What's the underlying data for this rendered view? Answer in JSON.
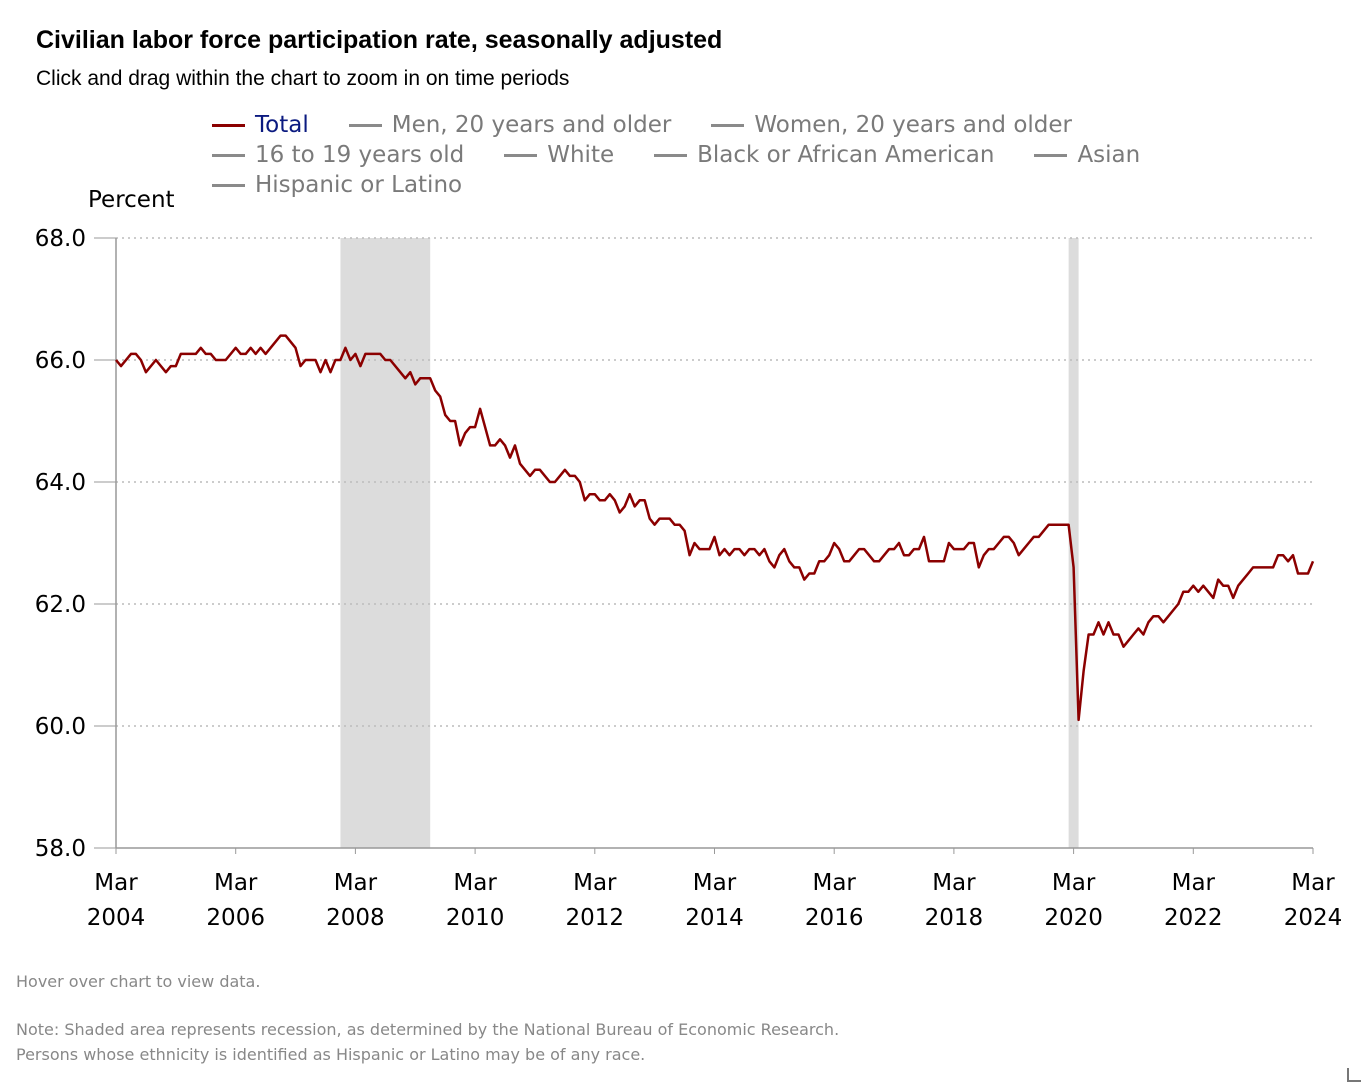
{
  "title": "Civilian labor force participation rate, seasonally adjusted",
  "subtitle": "Click and drag within the chart to zoom in on time periods",
  "legend": [
    {
      "label": "Total",
      "active": true
    },
    {
      "label": "Men, 20 years and older",
      "active": false
    },
    {
      "label": "Women, 20 years and older",
      "active": false
    },
    {
      "label": "16 to 19 years old",
      "active": false
    },
    {
      "label": "White",
      "active": false
    },
    {
      "label": "Black or African American",
      "active": false
    },
    {
      "label": "Asian",
      "active": false
    },
    {
      "label": "Hispanic or Latino",
      "active": false
    }
  ],
  "colors": {
    "total": "#8b0000",
    "recession": "#dcdcdc",
    "grid": "#bbbbbb",
    "axis": "#999999",
    "legend_inactive": "#7a7a7a",
    "legend_active_text": "#0b1a80"
  },
  "hover_note": "Hover over chart to view data.",
  "notes": [
    "Note: Shaded area represents recession, as determined by the National Bureau of Economic Research.",
    "Persons whose ethnicity is identified as Hispanic or Latino may be of any race."
  ],
  "chart_data": {
    "type": "line",
    "ylabel": "Percent",
    "xlabel": "",
    "ylim": [
      58.0,
      68.0
    ],
    "xlim": [
      "2004-03",
      "2024-03"
    ],
    "yticks": [
      "58.0",
      "60.0",
      "62.0",
      "64.0",
      "66.0",
      "68.0"
    ],
    "xticks": [
      {
        "month": "Mar",
        "year": "2004"
      },
      {
        "month": "Mar",
        "year": "2006"
      },
      {
        "month": "Mar",
        "year": "2008"
      },
      {
        "month": "Mar",
        "year": "2010"
      },
      {
        "month": "Mar",
        "year": "2012"
      },
      {
        "month": "Mar",
        "year": "2014"
      },
      {
        "month": "Mar",
        "year": "2016"
      },
      {
        "month": "Mar",
        "year": "2018"
      },
      {
        "month": "Mar",
        "year": "2020"
      },
      {
        "month": "Mar",
        "year": "2022"
      },
      {
        "month": "Mar",
        "year": "2024"
      }
    ],
    "grid": true,
    "recessions": [
      [
        "2007-12",
        "2009-06"
      ],
      [
        "2020-02",
        "2020-04"
      ]
    ],
    "series": [
      {
        "name": "Total",
        "points": [
          [
            "2004-03",
            66.0
          ],
          [
            "2004-04",
            65.9
          ],
          [
            "2004-06",
            66.1
          ],
          [
            "2004-07",
            66.1
          ],
          [
            "2004-08",
            66.0
          ],
          [
            "2004-09",
            65.8
          ],
          [
            "2004-11",
            66.0
          ],
          [
            "2005-01",
            65.8
          ],
          [
            "2005-02",
            65.9
          ],
          [
            "2005-03",
            65.9
          ],
          [
            "2005-04",
            66.1
          ],
          [
            "2005-07",
            66.1
          ],
          [
            "2005-08",
            66.2
          ],
          [
            "2005-09",
            66.1
          ],
          [
            "2005-10",
            66.1
          ],
          [
            "2005-11",
            66.0
          ],
          [
            "2006-01",
            66.0
          ],
          [
            "2006-03",
            66.2
          ],
          [
            "2006-04",
            66.1
          ],
          [
            "2006-05",
            66.1
          ],
          [
            "2006-06",
            66.2
          ],
          [
            "2006-07",
            66.1
          ],
          [
            "2006-08",
            66.2
          ],
          [
            "2006-09",
            66.1
          ],
          [
            "2006-11",
            66.3
          ],
          [
            "2006-12",
            66.4
          ],
          [
            "2007-01",
            66.4
          ],
          [
            "2007-03",
            66.2
          ],
          [
            "2007-04",
            65.9
          ],
          [
            "2007-05",
            66.0
          ],
          [
            "2007-07",
            66.0
          ],
          [
            "2007-08",
            65.8
          ],
          [
            "2007-09",
            66.0
          ],
          [
            "2007-10",
            65.8
          ],
          [
            "2007-11",
            66.0
          ],
          [
            "2007-12",
            66.0
          ],
          [
            "2008-01",
            66.2
          ],
          [
            "2008-02",
            66.0
          ],
          [
            "2008-03",
            66.1
          ],
          [
            "2008-04",
            65.9
          ],
          [
            "2008-05",
            66.1
          ],
          [
            "2008-08",
            66.1
          ],
          [
            "2008-09",
            66.0
          ],
          [
            "2008-10",
            66.0
          ],
          [
            "2008-12",
            65.8
          ],
          [
            "2009-01",
            65.7
          ],
          [
            "2009-02",
            65.8
          ],
          [
            "2009-03",
            65.6
          ],
          [
            "2009-04",
            65.7
          ],
          [
            "2009-06",
            65.7
          ],
          [
            "2009-07",
            65.5
          ],
          [
            "2009-08",
            65.4
          ],
          [
            "2009-09",
            65.1
          ],
          [
            "2009-10",
            65.0
          ],
          [
            "2009-11",
            65.0
          ],
          [
            "2009-12",
            64.6
          ],
          [
            "2010-01",
            64.8
          ],
          [
            "2010-02",
            64.9
          ],
          [
            "2010-03",
            64.9
          ],
          [
            "2010-04",
            65.2
          ],
          [
            "2010-05",
            64.9
          ],
          [
            "2010-06",
            64.6
          ],
          [
            "2010-07",
            64.6
          ],
          [
            "2010-08",
            64.7
          ],
          [
            "2010-09",
            64.6
          ],
          [
            "2010-10",
            64.4
          ],
          [
            "2010-11",
            64.6
          ],
          [
            "2010-12",
            64.3
          ],
          [
            "2011-01",
            64.2
          ],
          [
            "2011-02",
            64.1
          ],
          [
            "2011-03",
            64.2
          ],
          [
            "2011-04",
            64.2
          ],
          [
            "2011-05",
            64.1
          ],
          [
            "2011-06",
            64.0
          ],
          [
            "2011-07",
            64.0
          ],
          [
            "2011-08",
            64.1
          ],
          [
            "2011-09",
            64.2
          ],
          [
            "2011-10",
            64.1
          ],
          [
            "2011-11",
            64.1
          ],
          [
            "2011-12",
            64.0
          ],
          [
            "2012-01",
            63.7
          ],
          [
            "2012-02",
            63.8
          ],
          [
            "2012-03",
            63.8
          ],
          [
            "2012-04",
            63.7
          ],
          [
            "2012-05",
            63.7
          ],
          [
            "2012-06",
            63.8
          ],
          [
            "2012-07",
            63.7
          ],
          [
            "2012-08",
            63.5
          ],
          [
            "2012-09",
            63.6
          ],
          [
            "2012-10",
            63.8
          ],
          [
            "2012-11",
            63.6
          ],
          [
            "2012-12",
            63.7
          ],
          [
            "2013-01",
            63.7
          ],
          [
            "2013-02",
            63.4
          ],
          [
            "2013-03",
            63.3
          ],
          [
            "2013-04",
            63.4
          ],
          [
            "2013-06",
            63.4
          ],
          [
            "2013-07",
            63.3
          ],
          [
            "2013-08",
            63.3
          ],
          [
            "2013-09",
            63.2
          ],
          [
            "2013-10",
            62.8
          ],
          [
            "2013-11",
            63.0
          ],
          [
            "2013-12",
            62.9
          ],
          [
            "2014-02",
            62.9
          ],
          [
            "2014-03",
            63.1
          ],
          [
            "2014-04",
            62.8
          ],
          [
            "2014-05",
            62.9
          ],
          [
            "2014-06",
            62.8
          ],
          [
            "2014-07",
            62.9
          ],
          [
            "2014-08",
            62.9
          ],
          [
            "2014-09",
            62.8
          ],
          [
            "2014-10",
            62.9
          ],
          [
            "2014-11",
            62.9
          ],
          [
            "2014-12",
            62.8
          ],
          [
            "2015-01",
            62.9
          ],
          [
            "2015-02",
            62.7
          ],
          [
            "2015-03",
            62.6
          ],
          [
            "2015-04",
            62.8
          ],
          [
            "2015-05",
            62.9
          ],
          [
            "2015-06",
            62.7
          ],
          [
            "2015-07",
            62.6
          ],
          [
            "2015-08",
            62.6
          ],
          [
            "2015-09",
            62.4
          ],
          [
            "2015-10",
            62.5
          ],
          [
            "2015-11",
            62.5
          ],
          [
            "2015-12",
            62.7
          ],
          [
            "2016-01",
            62.7
          ],
          [
            "2016-02",
            62.8
          ],
          [
            "2016-03",
            63.0
          ],
          [
            "2016-04",
            62.9
          ],
          [
            "2016-05",
            62.7
          ],
          [
            "2016-06",
            62.7
          ],
          [
            "2016-07",
            62.8
          ],
          [
            "2016-08",
            62.9
          ],
          [
            "2016-09",
            62.9
          ],
          [
            "2016-10",
            62.8
          ],
          [
            "2016-11",
            62.7
          ],
          [
            "2016-12",
            62.7
          ],
          [
            "2017-01",
            62.8
          ],
          [
            "2017-02",
            62.9
          ],
          [
            "2017-03",
            62.9
          ],
          [
            "2017-04",
            63.0
          ],
          [
            "2017-05",
            62.8
          ],
          [
            "2017-06",
            62.8
          ],
          [
            "2017-07",
            62.9
          ],
          [
            "2017-08",
            62.9
          ],
          [
            "2017-09",
            63.1
          ],
          [
            "2017-10",
            62.7
          ],
          [
            "2017-11",
            62.7
          ],
          [
            "2018-01",
            62.7
          ],
          [
            "2018-02",
            63.0
          ],
          [
            "2018-03",
            62.9
          ],
          [
            "2018-05",
            62.9
          ],
          [
            "2018-06",
            63.0
          ],
          [
            "2018-07",
            63.0
          ],
          [
            "2018-08",
            62.6
          ],
          [
            "2018-09",
            62.8
          ],
          [
            "2018-10",
            62.9
          ],
          [
            "2018-11",
            62.9
          ],
          [
            "2018-12",
            63.0
          ],
          [
            "2019-01",
            63.1
          ],
          [
            "2019-02",
            63.1
          ],
          [
            "2019-03",
            63.0
          ],
          [
            "2019-04",
            62.8
          ],
          [
            "2019-05",
            62.9
          ],
          [
            "2019-06",
            63.0
          ],
          [
            "2019-07",
            63.1
          ],
          [
            "2019-08",
            63.1
          ],
          [
            "2019-09",
            63.2
          ],
          [
            "2019-10",
            63.3
          ],
          [
            "2020-02",
            63.3
          ],
          [
            "2020-03",
            62.6
          ],
          [
            "2020-04",
            60.1
          ],
          [
            "2020-05",
            60.9
          ],
          [
            "2020-06",
            61.5
          ],
          [
            "2020-07",
            61.5
          ],
          [
            "2020-08",
            61.7
          ],
          [
            "2020-09",
            61.5
          ],
          [
            "2020-10",
            61.7
          ],
          [
            "2020-11",
            61.5
          ],
          [
            "2020-12",
            61.5
          ],
          [
            "2021-01",
            61.3
          ],
          [
            "2021-02",
            61.4
          ],
          [
            "2021-03",
            61.5
          ],
          [
            "2021-04",
            61.6
          ],
          [
            "2021-05",
            61.5
          ],
          [
            "2021-06",
            61.7
          ],
          [
            "2021-07",
            61.8
          ],
          [
            "2021-08",
            61.8
          ],
          [
            "2021-09",
            61.7
          ],
          [
            "2021-10",
            61.8
          ],
          [
            "2021-11",
            61.9
          ],
          [
            "2021-12",
            62.0
          ],
          [
            "2022-01",
            62.2
          ],
          [
            "2022-02",
            62.2
          ],
          [
            "2022-03",
            62.3
          ],
          [
            "2022-04",
            62.2
          ],
          [
            "2022-05",
            62.3
          ],
          [
            "2022-06",
            62.2
          ],
          [
            "2022-07",
            62.1
          ],
          [
            "2022-08",
            62.4
          ],
          [
            "2022-09",
            62.3
          ],
          [
            "2022-10",
            62.3
          ],
          [
            "2022-11",
            62.1
          ],
          [
            "2022-12",
            62.3
          ],
          [
            "2023-01",
            62.4
          ],
          [
            "2023-02",
            62.5
          ],
          [
            "2023-03",
            62.6
          ],
          [
            "2023-06",
            62.6
          ],
          [
            "2023-07",
            62.6
          ],
          [
            "2023-08",
            62.8
          ],
          [
            "2023-09",
            62.8
          ],
          [
            "2023-10",
            62.7
          ],
          [
            "2023-11",
            62.8
          ],
          [
            "2023-12",
            62.5
          ],
          [
            "2024-02",
            62.5
          ],
          [
            "2024-03",
            62.7
          ]
        ]
      }
    ]
  }
}
